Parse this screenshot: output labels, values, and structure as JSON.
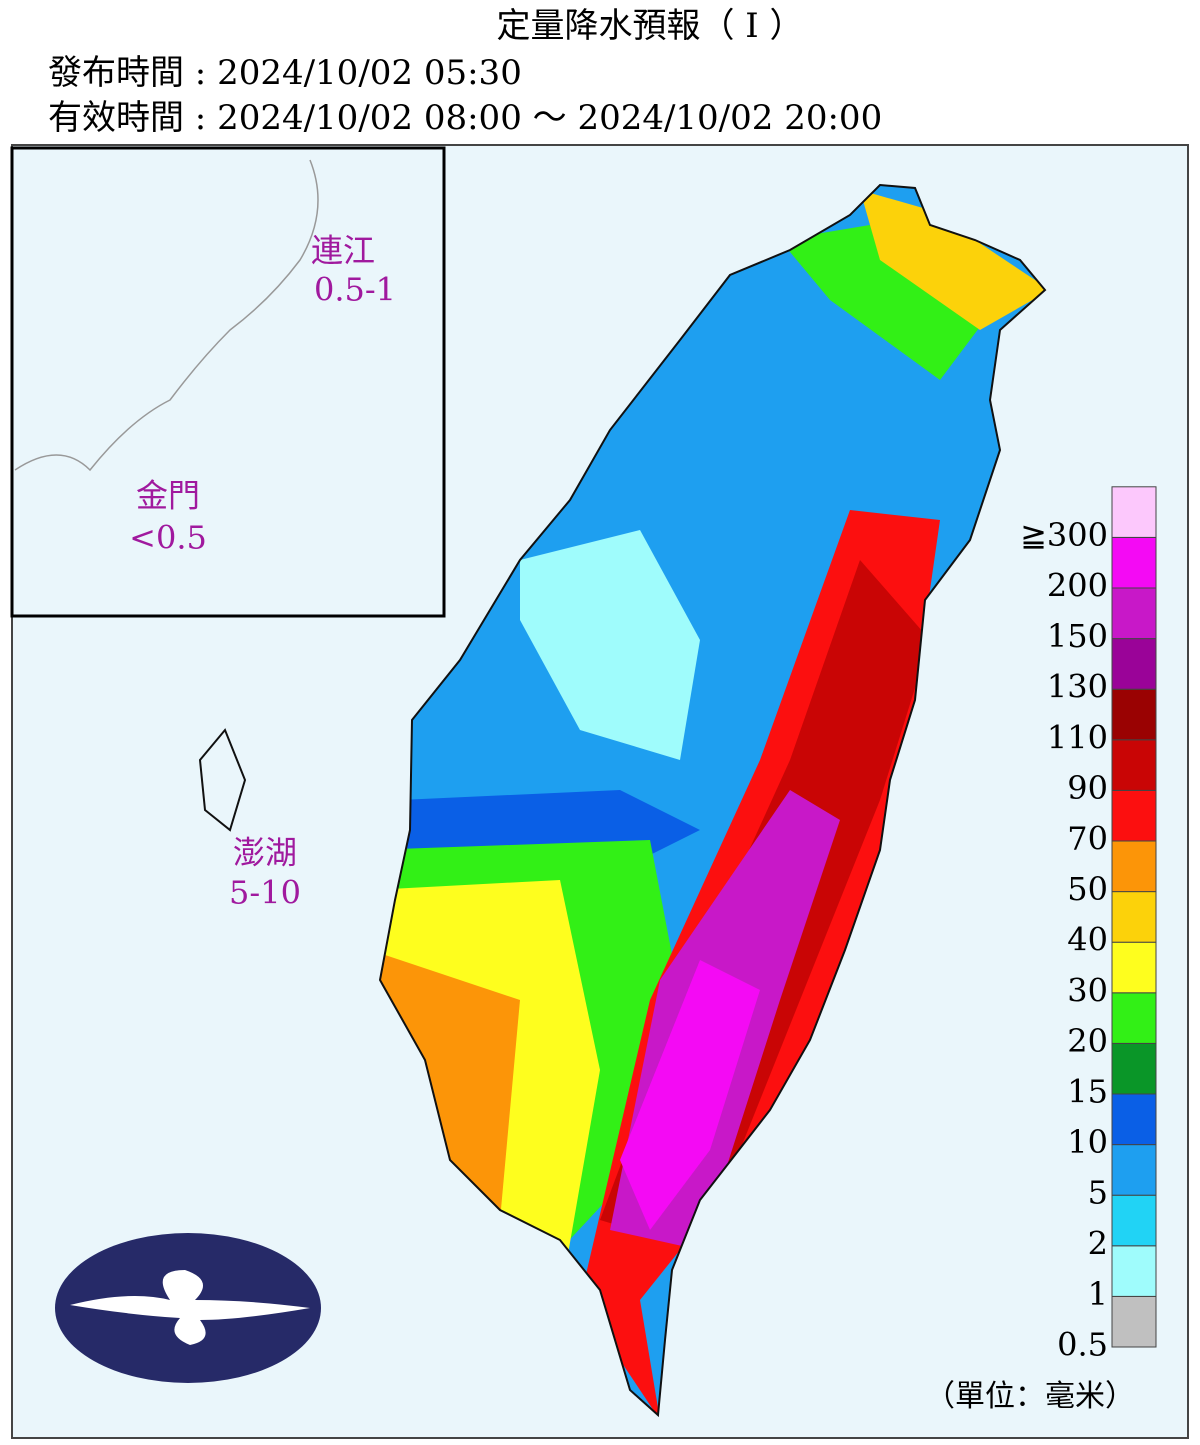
{
  "header": {
    "title": "定量降水預報（ I ）",
    "issued": "發布時間 : 2024/10/02 05:30",
    "valid": "有效時間 : 2024/10/02 08:00 ～ 2024/10/02 20:00"
  },
  "labels": [
    {
      "name": "連江",
      "range": "0.5-1"
    },
    {
      "name": "金門",
      "range": "<0.5"
    },
    {
      "name": "澎湖",
      "range": "5-10"
    }
  ],
  "legend": {
    "levels": [
      "0.5",
      "1",
      "2",
      "5",
      "10",
      "15",
      "20",
      "30",
      "40",
      "50",
      "70",
      "90",
      "110",
      "130",
      "150",
      "200",
      "≧300"
    ],
    "colors": [
      "#c0c0c0",
      "#9ffcfc",
      "#21d3f5",
      "#1e9ff0",
      "#0a5fe6",
      "#0a9628",
      "#32f016",
      "#fefe1e",
      "#fcd20a",
      "#fc9508",
      "#fc0f0f",
      "#c90505",
      "#9a0202",
      "#9a0398",
      "#c818c8",
      "#f40af4",
      "#fcc8fc"
    ],
    "unit": "（單位：毫米）"
  }
}
